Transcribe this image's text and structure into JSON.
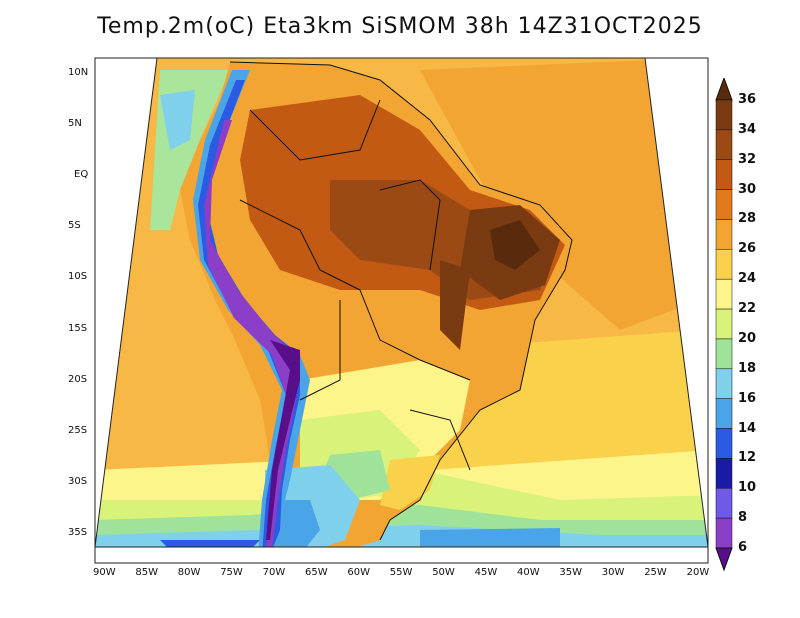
{
  "title": "Temp.2m(oC) Eta3km SiSMOM 38h 14Z31OCT2025",
  "axes": {
    "lat_labels": [
      "10N",
      "5N",
      "EQ",
      "5S",
      "10S",
      "15S",
      "20S",
      "25S",
      "30S",
      "35S"
    ],
    "lon_labels": [
      "90W",
      "85W",
      "80W",
      "75W",
      "70W",
      "65W",
      "60W",
      "55W",
      "50W",
      "45W",
      "40W",
      "35W",
      "30W",
      "25W",
      "20W"
    ]
  },
  "legend": {
    "labels": [
      "36",
      "34",
      "32",
      "30",
      "28",
      "26",
      "24",
      "22",
      "20",
      "18",
      "16",
      "14",
      "12",
      "10",
      "8",
      "6"
    ],
    "colors": [
      "#5a2a0c",
      "#7a3a12",
      "#9c4a14",
      "#c25a14",
      "#e07a1a",
      "#f3a533",
      "#fad14a",
      "#fdf48a",
      "#d9f27a",
      "#9fe29a",
      "#7fd0ea",
      "#4aa5e8",
      "#2a5be2",
      "#1a1aa6",
      "#6e5ae6",
      "#8b3fc9",
      "#5a0f8a"
    ],
    "unit": "oC"
  }
}
